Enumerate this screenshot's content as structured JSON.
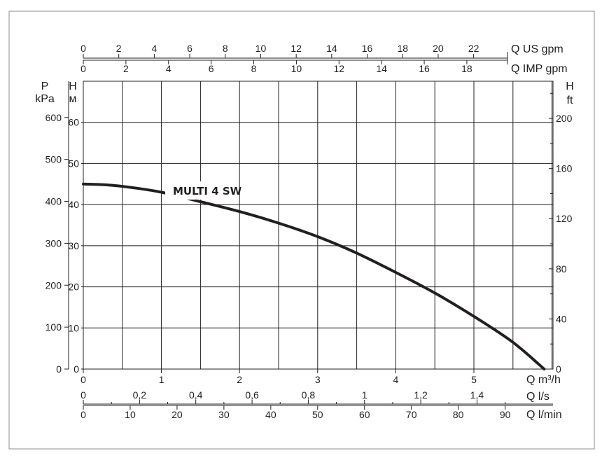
{
  "chart_data": {
    "type": "line",
    "title": "",
    "colors": {
      "frame": "#8c8c8c",
      "ink": "#231f20",
      "curve": "#231f20",
      "background": "#ffffff"
    },
    "grid": true,
    "primary_x": {
      "label": "Q m³/h",
      "range": [
        0,
        6
      ],
      "ticks": [
        "0",
        "1",
        "2",
        "3",
        "4",
        "5"
      ]
    },
    "primary_y": {
      "label_top": "H",
      "label_bottom": "м",
      "range": [
        0,
        70
      ],
      "ticks": [
        "0",
        "10",
        "20",
        "30",
        "40",
        "50",
        "60"
      ]
    },
    "secondary_axes": {
      "pressure": {
        "label_top": "P",
        "label_bottom": "kPa",
        "ticks": [
          "0",
          "100",
          "200",
          "300",
          "400",
          "500",
          "600"
        ]
      },
      "feet": {
        "label_top": "H",
        "label_bottom": "ft",
        "ticks": [
          "0",
          "40",
          "80",
          "120",
          "160",
          "200"
        ]
      },
      "us_gpm": {
        "label": "Q US gpm",
        "ticks": [
          "0",
          "2",
          "4",
          "6",
          "8",
          "10",
          "12",
          "14",
          "16",
          "18",
          "20",
          "22"
        ]
      },
      "imp_gpm": {
        "label": "Q IMP gpm",
        "ticks": [
          "0",
          "2",
          "4",
          "6",
          "8",
          "10",
          "12",
          "14",
          "16",
          "18"
        ]
      },
      "lps": {
        "label": "Q l/s",
        "ticks": [
          "0",
          "0,2",
          "0,4",
          "0,6",
          "0,8",
          "1",
          "1,2",
          "1,4"
        ]
      },
      "lpm": {
        "label": "Q l/min",
        "ticks": [
          "0",
          "10",
          "20",
          "30",
          "40",
          "50",
          "60",
          "70",
          "80",
          "90"
        ]
      }
    },
    "series": [
      {
        "name": "MULTI 4 SW",
        "x": [
          0,
          0.3,
          0.6,
          1.0,
          1.5,
          2.0,
          2.5,
          3.0,
          3.5,
          4.0,
          4.5,
          5.0,
          5.5,
          5.9
        ],
        "y": [
          45,
          44.8,
          44.2,
          43,
          40.7,
          38.3,
          35.5,
          32.2,
          28.2,
          23.5,
          18.5,
          12.8,
          6.5,
          0
        ]
      }
    ]
  }
}
